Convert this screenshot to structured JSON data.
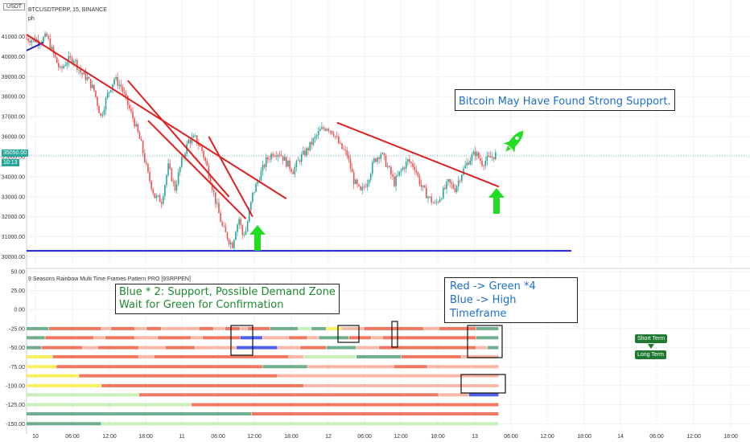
{
  "header": {
    "currency": "USDT",
    "symbol_line": "BTCUSDTPERP, 15, BINANCE",
    "indicator_short": "ph",
    "indicator_name": "9 Seasons Rainbow Multi Time Frames Pattern PRO [9SRPPEN]"
  },
  "price_badge": {
    "value": "35050.00",
    "countdown": "10:13"
  },
  "annotations": {
    "main_title": "Bitcoin May Have Found Strong Support.",
    "note1_line1": "Blue * 2: Support, Possible Demand Zone",
    "note1_line2": "Wait for Green for Confirmation",
    "note2_line1": "Red -> Green *4",
    "note2_line2": "Blue -> High Timeframe"
  },
  "legend_tags": {
    "short": "Short Term",
    "long": "Long Term"
  },
  "colors": {
    "up": "#26a69a",
    "down": "#ef5350",
    "trendline": "#e02020",
    "support": "#1a24c8",
    "arrow": "#22dd22",
    "note_green": "#1e8a2e",
    "note_blue": "#1e6ec8",
    "rb_red": "#f07860",
    "rb_pink": "#f8b8a8",
    "rb_green": "#6fae8e",
    "rb_light": "#c8f0b8",
    "rb_yellow": "#f8f060",
    "rb_blue": "#5060e8"
  },
  "chart_data": [
    {
      "type": "candlestick",
      "title": "BTCUSDTPERP, 15, BINANCE",
      "x_ticks": [
        "10",
        "06:00",
        "12:00",
        "18:00",
        "11",
        "06:00",
        "12:00",
        "18:00",
        "12",
        "06:00",
        "12:00",
        "18:00",
        "13",
        "06:00",
        "12:00",
        "18:00",
        "14",
        "06:00",
        "12:00",
        "18:00"
      ],
      "y_ticks": [
        41000,
        40000,
        39000,
        38000,
        37000,
        36000,
        35000,
        34000,
        33000,
        32000,
        31000,
        30000
      ],
      "ylim": [
        29500,
        41700
      ],
      "last_price": 35050,
      "close_path": [
        [
          0,
          40900
        ],
        [
          8,
          40800
        ],
        [
          12,
          41000
        ],
        [
          16,
          40100
        ],
        [
          20,
          39300
        ],
        [
          24,
          39800
        ],
        [
          28,
          39900
        ],
        [
          32,
          39200
        ],
        [
          36,
          38900
        ],
        [
          40,
          38300
        ],
        [
          44,
          37000
        ],
        [
          48,
          38100
        ],
        [
          52,
          38900
        ],
        [
          56,
          38500
        ],
        [
          60,
          37600
        ],
        [
          64,
          36700
        ],
        [
          68,
          35600
        ],
        [
          72,
          34100
        ],
        [
          76,
          33000
        ],
        [
          80,
          32800
        ],
        [
          84,
          34500
        ],
        [
          88,
          33400
        ],
        [
          92,
          34800
        ],
        [
          96,
          35800
        ],
        [
          100,
          35900
        ],
        [
          104,
          35300
        ],
        [
          108,
          34200
        ],
        [
          112,
          32800
        ],
        [
          116,
          31500
        ],
        [
          120,
          30800
        ],
        [
          122,
          30600
        ],
        [
          124,
          31400
        ],
        [
          126,
          31900
        ],
        [
          128,
          31100
        ],
        [
          130,
          31300
        ],
        [
          134,
          33100
        ],
        [
          138,
          34000
        ],
        [
          142,
          34800
        ],
        [
          146,
          35200
        ],
        [
          150,
          35200
        ],
        [
          154,
          34700
        ],
        [
          158,
          34300
        ],
        [
          162,
          34900
        ],
        [
          166,
          35300
        ],
        [
          170,
          35800
        ],
        [
          174,
          36300
        ],
        [
          178,
          36500
        ],
        [
          182,
          36200
        ],
        [
          186,
          35500
        ],
        [
          190,
          35100
        ],
        [
          194,
          33800
        ],
        [
          198,
          33200
        ],
        [
          202,
          33800
        ],
        [
          206,
          34800
        ],
        [
          210,
          35200
        ],
        [
          214,
          34500
        ],
        [
          218,
          33700
        ],
        [
          222,
          34300
        ],
        [
          226,
          34800
        ],
        [
          230,
          34500
        ],
        [
          234,
          33500
        ],
        [
          238,
          33000
        ],
        [
          242,
          32600
        ],
        [
          246,
          33100
        ],
        [
          250,
          33700
        ],
        [
          254,
          33400
        ],
        [
          258,
          34200
        ],
        [
          262,
          34800
        ],
        [
          266,
          35200
        ],
        [
          270,
          34700
        ],
        [
          274,
          34900
        ],
        [
          278,
          35100
        ]
      ],
      "trendlines": [
        {
          "from": [
            0,
            41100
          ],
          "to": [
            154,
            32900
          ]
        },
        {
          "from": [
            60,
            38800
          ],
          "to": [
            120,
            33000
          ]
        },
        {
          "from": [
            72,
            36800
          ],
          "to": [
            130,
            31900
          ]
        },
        {
          "from": [
            108,
            36000
          ],
          "to": [
            134,
            32000
          ]
        },
        {
          "from": [
            184,
            36700
          ],
          "to": [
            280,
            33500
          ]
        }
      ],
      "support_level": 30300
    },
    {
      "type": "heatmap",
      "title": "9 Seasons Rainbow Multi Time Frames Pattern PRO [9SRPPEN]",
      "y_ticks": [
        50,
        25,
        0,
        -25,
        -50,
        -75,
        -100,
        -125,
        -150
      ],
      "ylim": [
        -155,
        52
      ],
      "rows": [
        {
          "level": -25,
          "segments": [
            [
              "green",
              0,
              12
            ],
            [
              "red",
              12,
              40
            ],
            [
              "pink",
              40,
              45
            ],
            [
              "red",
              45,
              58
            ],
            [
              "pink",
              58,
              64
            ],
            [
              "red",
              64,
              72
            ],
            [
              "pink",
              72,
              92
            ],
            [
              "red",
              92,
              100
            ],
            [
              "pink",
              100,
              106
            ],
            [
              "red",
              106,
              114
            ],
            [
              "pink",
              114,
              118
            ],
            [
              "red",
              118,
              130
            ],
            [
              "green",
              130,
              145
            ],
            [
              "light",
              145,
              152
            ],
            [
              "green",
              152,
              160
            ],
            [
              "yellow",
              160,
              168
            ],
            [
              "pink",
              168,
              180
            ],
            [
              "red",
              180,
              212
            ],
            [
              "pink",
              212,
              220
            ],
            [
              "red",
              220,
              240
            ],
            [
              "green",
              240,
              252
            ]
          ]
        },
        {
          "level": -37,
          "segments": [
            [
              "green",
              0,
              10
            ],
            [
              "red",
              10,
              36
            ],
            [
              "pink",
              36,
              42
            ],
            [
              "red",
              42,
              58
            ],
            [
              "pink",
              58,
              70
            ],
            [
              "red",
              70,
              88
            ],
            [
              "pink",
              88,
              94
            ],
            [
              "red",
              94,
              114
            ],
            [
              "blue",
              114,
              126
            ],
            [
              "pink",
              126,
              140
            ],
            [
              "red",
              140,
              150
            ],
            [
              "pink",
              150,
              156
            ],
            [
              "green",
              156,
              172
            ],
            [
              "red",
              172,
              184
            ],
            [
              "pink",
              184,
              190
            ],
            [
              "red",
              190,
              240
            ],
            [
              "green",
              240,
              252
            ]
          ]
        },
        {
          "level": -50,
          "segments": [
            [
              "green",
              0,
              8
            ],
            [
              "red",
              8,
              30
            ],
            [
              "pink",
              30,
              38
            ],
            [
              "red",
              38,
              60
            ],
            [
              "pink",
              60,
              74
            ],
            [
              "red",
              74,
              90
            ],
            [
              "pink",
              90,
              112
            ],
            [
              "blue",
              112,
              134
            ],
            [
              "pink",
              134,
              146
            ],
            [
              "red",
              146,
              160
            ],
            [
              "green",
              160,
              176
            ],
            [
              "pink",
              176,
              188
            ],
            [
              "red",
              188,
              240
            ],
            [
              "pink",
              240,
              246
            ],
            [
              "green",
              246,
              252
            ]
          ]
        },
        {
          "level": -62,
          "segments": [
            [
              "yellow",
              0,
              14
            ],
            [
              "red",
              14,
              60
            ],
            [
              "pink",
              60,
              68
            ],
            [
              "red",
              68,
              140
            ],
            [
              "pink",
              140,
              148
            ],
            [
              "light",
              148,
              176
            ],
            [
              "green",
              176,
              200
            ],
            [
              "red",
              200,
              232
            ],
            [
              "pink",
              232,
              252
            ]
          ]
        },
        {
          "level": -75,
          "segments": [
            [
              "yellow",
              0,
              16
            ],
            [
              "red",
              16,
              126
            ],
            [
              "green",
              126,
              150
            ],
            [
              "pink",
              150,
              196
            ],
            [
              "red",
              196,
              214
            ],
            [
              "pink",
              214,
              252
            ]
          ]
        },
        {
          "level": -87,
          "segments": [
            [
              "yellow",
              0,
              28
            ],
            [
              "red",
              28,
              134
            ],
            [
              "pink",
              134,
              252
            ]
          ]
        },
        {
          "level": -100,
          "segments": [
            [
              "yellow",
              0,
              40
            ],
            [
              "red",
              40,
              148
            ],
            [
              "pink",
              148,
              252
            ]
          ]
        },
        {
          "level": -112,
          "segments": [
            [
              "light",
              0,
              60
            ],
            [
              "red",
              60,
              220
            ],
            [
              "pink",
              220,
              236
            ],
            [
              "blue",
              236,
              252
            ]
          ]
        },
        {
          "level": -125,
          "segments": [
            [
              "light",
              0,
              88
            ],
            [
              "red",
              88,
              252
            ]
          ]
        },
        {
          "level": -137,
          "segments": [
            [
              "green",
              0,
              120
            ],
            [
              "red",
              120,
              252
            ]
          ]
        },
        {
          "level": -150,
          "segments": [
            [
              "green",
              0,
              40
            ],
            [
              "light",
              40,
              252
            ]
          ]
        }
      ]
    }
  ]
}
